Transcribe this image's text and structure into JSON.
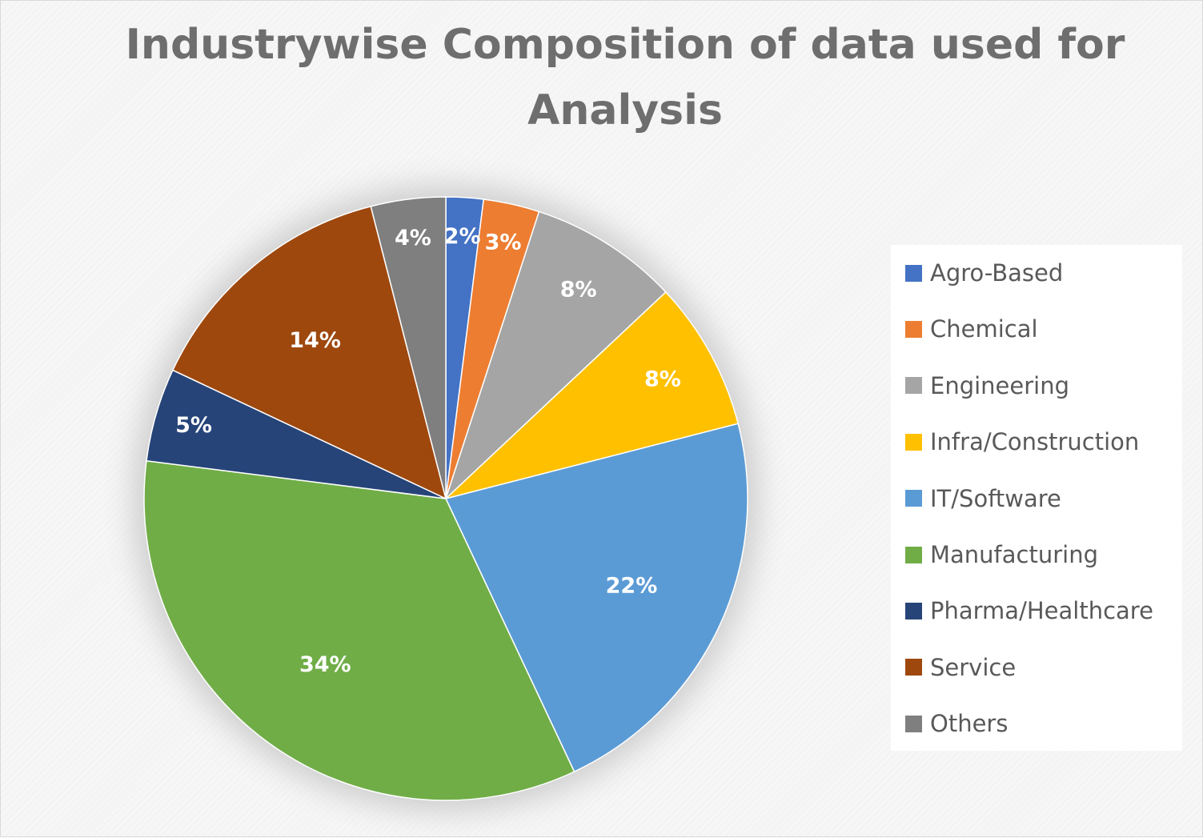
{
  "chart_data": {
    "type": "pie",
    "title": "Industrywise Composition of data used for Analysis",
    "slices": [
      {
        "name": "Agro-Based",
        "value": 2,
        "label": "2%",
        "color": "#4472c4"
      },
      {
        "name": "Chemical",
        "value": 3,
        "label": "3%",
        "color": "#ed7d31"
      },
      {
        "name": "Engineering",
        "value": 8,
        "label": "8%",
        "color": "#a5a5a5"
      },
      {
        "name": "Infra/Construction",
        "value": 8,
        "label": "8%",
        "color": "#ffc000"
      },
      {
        "name": "IT/Software",
        "value": 22,
        "label": "22%",
        "color": "#5b9bd5"
      },
      {
        "name": "Manufacturing",
        "value": 34,
        "label": "34%",
        "color": "#70ad47"
      },
      {
        "name": "Pharma/Healthcare",
        "value": 5,
        "label": "5%",
        "color": "#264478"
      },
      {
        "name": "Service",
        "value": 14,
        "label": "14%",
        "color": "#9e480e"
      },
      {
        "name": "Others",
        "value": 4,
        "label": "4%",
        "color": "#7f7f7f"
      }
    ],
    "legend_position": "right"
  }
}
